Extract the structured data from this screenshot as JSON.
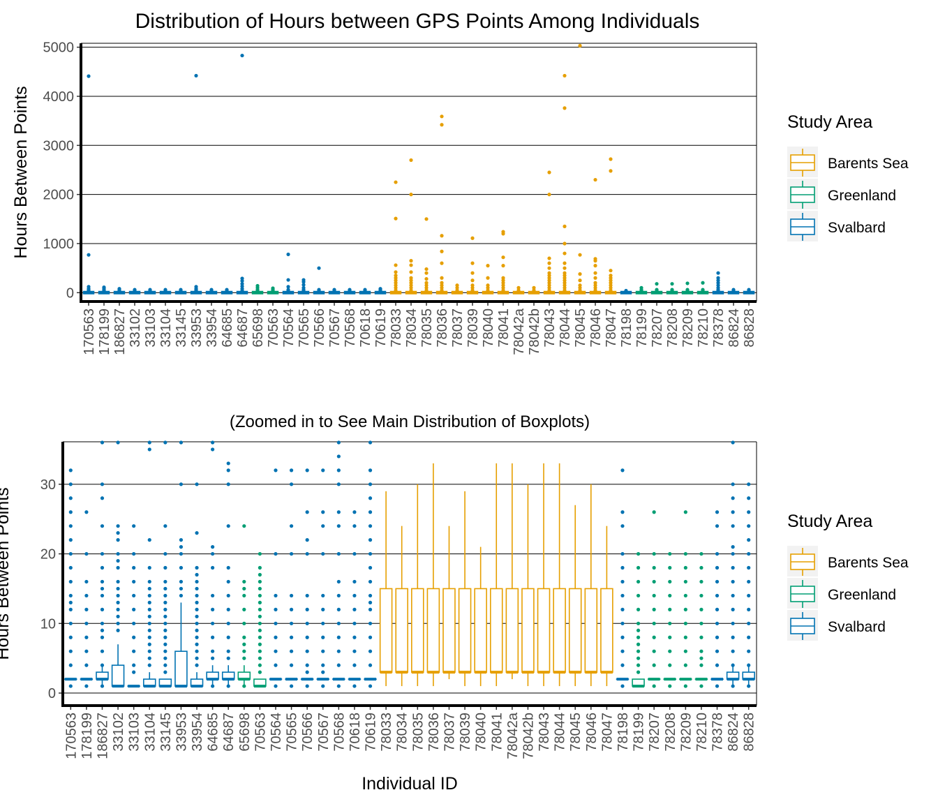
{
  "colors": {
    "Barents Sea": "#E69F00",
    "Greenland": "#009E73",
    "Svalbard": "#0072B2"
  },
  "chart_data": [
    {
      "type": "box",
      "title": "Distribution of Hours between GPS Points Among Individuals",
      "xlabel": "",
      "ylabel": "Hours Between Points",
      "ylim": [
        -180,
        5080
      ],
      "yticks": [
        0,
        1000,
        2000,
        3000,
        4000,
        5000
      ],
      "grid": "horizontal major",
      "legend": {
        "title": "Study Area",
        "position": "right",
        "entries": [
          "Barents Sea",
          "Greenland",
          "Svalbard"
        ]
      },
      "categories": [
        "170563",
        "178199",
        "186827",
        "33102",
        "33103",
        "33104",
        "33145",
        "33953",
        "33954",
        "64685",
        "64687",
        "65698",
        "70563",
        "70564",
        "70565",
        "70566",
        "70567",
        "70568",
        "70618",
        "70619",
        "78033",
        "78034",
        "78035",
        "78036",
        "78037",
        "78039",
        "78040",
        "78041",
        "78042a",
        "78042b",
        "78043",
        "78044",
        "78045",
        "78046",
        "78047",
        "78198",
        "78199",
        "78207",
        "78208",
        "78209",
        "78210",
        "78378",
        "86824",
        "86828"
      ],
      "groups": [
        "Svalbard",
        "Svalbard",
        "Svalbard",
        "Svalbard",
        "Svalbard",
        "Svalbard",
        "Svalbard",
        "Svalbard",
        "Svalbard",
        "Svalbard",
        "Svalbard",
        "Greenland",
        "Greenland",
        "Svalbard",
        "Svalbard",
        "Svalbard",
        "Svalbard",
        "Svalbard",
        "Svalbard",
        "Svalbard",
        "Barents Sea",
        "Barents Sea",
        "Barents Sea",
        "Barents Sea",
        "Barents Sea",
        "Barents Sea",
        "Barents Sea",
        "Barents Sea",
        "Barents Sea",
        "Barents Sea",
        "Barents Sea",
        "Barents Sea",
        "Barents Sea",
        "Barents Sea",
        "Barents Sea",
        "Svalbard",
        "Greenland",
        "Greenland",
        "Greenland",
        "Greenland",
        "Greenland",
        "Svalbard",
        "Svalbard",
        "Svalbard"
      ],
      "outliers": [
        [
          20,
          40,
          60,
          80,
          120,
          770,
          4410
        ],
        [
          20,
          40,
          60,
          90,
          110
        ],
        [
          20,
          40,
          60,
          80
        ],
        [
          20,
          40,
          60
        ],
        [
          20,
          40,
          60
        ],
        [
          20,
          40,
          60
        ],
        [
          20,
          40,
          60
        ],
        [
          20,
          40,
          60,
          80,
          120,
          4420
        ],
        [
          20,
          40,
          60
        ],
        [
          20,
          40,
          60
        ],
        [
          40,
          80,
          130,
          180,
          240,
          290,
          4830
        ],
        [
          20,
          40,
          60,
          100,
          140
        ],
        [
          20,
          40,
          60,
          90
        ],
        [
          20,
          40,
          60,
          120,
          260,
          780
        ],
        [
          20,
          40,
          60,
          100,
          160,
          220,
          260
        ],
        [
          20,
          40,
          60,
          500
        ],
        [
          20,
          40,
          60
        ],
        [
          20,
          40,
          60
        ],
        [
          20,
          40,
          60
        ],
        [
          20,
          40,
          60,
          80
        ],
        [
          50,
          100,
          150,
          200,
          250,
          300,
          350,
          420,
          560,
          1510,
          2250
        ],
        [
          50,
          100,
          150,
          200,
          250,
          300,
          420,
          560,
          650,
          2000,
          2700
        ],
        [
          50,
          100,
          150,
          200,
          280,
          400,
          480,
          1500
        ],
        [
          50,
          100,
          150,
          200,
          300,
          600,
          840,
          1160,
          3420,
          3590
        ],
        [
          50,
          100,
          150
        ],
        [
          50,
          100,
          150,
          250,
          400,
          600,
          1110
        ],
        [
          50,
          100,
          150,
          300,
          550
        ],
        [
          50,
          100,
          150,
          200,
          250,
          300,
          550,
          720,
          1200,
          1240
        ],
        [
          50,
          100
        ],
        [
          50,
          100
        ],
        [
          50,
          100,
          150,
          200,
          250,
          300,
          350,
          400,
          500,
          600,
          700,
          2000,
          2450
        ],
        [
          50,
          100,
          150,
          200,
          250,
          300,
          350,
          400,
          500,
          600,
          800,
          1000,
          1350,
          3760,
          4420
        ],
        [
          50,
          100,
          150,
          250,
          380,
          770,
          5030
        ],
        [
          50,
          100,
          150,
          200,
          300,
          400,
          550,
          650,
          690,
          2300
        ],
        [
          50,
          100,
          150,
          200,
          250,
          300,
          350,
          450,
          2480,
          2720
        ],
        [
          20,
          40
        ],
        [
          20,
          40,
          60,
          100
        ],
        [
          20,
          40,
          60,
          180
        ],
        [
          20,
          40,
          60,
          180
        ],
        [
          20,
          40,
          60,
          190
        ],
        [
          20,
          40,
          60,
          200
        ],
        [
          20,
          40,
          60,
          100,
          150,
          200,
          250,
          300,
          400
        ],
        [
          20,
          40,
          60
        ],
        [
          20,
          40,
          60
        ]
      ]
    },
    {
      "type": "box",
      "title": "(Zoomed in to See Main Distribution of Boxplots)",
      "xlabel": "Individual ID",
      "ylabel": "Hours Between Points",
      "ylim": [
        -1.8,
        36.1
      ],
      "yticks": [
        0,
        10,
        20,
        30
      ],
      "grid": "horizontal major",
      "legend": {
        "title": "Study Area",
        "position": "right",
        "entries": [
          "Barents Sea",
          "Greenland",
          "Svalbard"
        ]
      },
      "boxes": [
        {
          "q1": 2,
          "median": 2,
          "q3": 2,
          "whisker_low": 2,
          "whisker_high": 2
        },
        {
          "q1": 2,
          "median": 2,
          "q3": 2,
          "whisker_low": 2,
          "whisker_high": 2
        },
        {
          "q1": 2,
          "median": 2,
          "q3": 3,
          "whisker_low": 1,
          "whisker_high": 4
        },
        {
          "q1": 1,
          "median": 1,
          "q3": 4,
          "whisker_low": 1,
          "whisker_high": 7
        },
        {
          "q1": 1,
          "median": 1,
          "q3": 1,
          "whisker_low": 1,
          "whisker_high": 1
        },
        {
          "q1": 1,
          "median": 1,
          "q3": 2,
          "whisker_low": 1,
          "whisker_high": 3
        },
        {
          "q1": 1,
          "median": 1,
          "q3": 2,
          "whisker_low": 1,
          "whisker_high": 2
        },
        {
          "q1": 1,
          "median": 1,
          "q3": 6,
          "whisker_low": 1,
          "whisker_high": 13
        },
        {
          "q1": 1,
          "median": 1,
          "q3": 2,
          "whisker_low": 1,
          "whisker_high": 3
        },
        {
          "q1": 2,
          "median": 2,
          "q3": 3,
          "whisker_low": 1,
          "whisker_high": 4
        },
        {
          "q1": 2,
          "median": 2,
          "q3": 3,
          "whisker_low": 1,
          "whisker_high": 4
        },
        {
          "q1": 2,
          "median": 2,
          "q3": 3,
          "whisker_low": 1,
          "whisker_high": 4
        },
        {
          "q1": 1,
          "median": 1,
          "q3": 2,
          "whisker_low": 1,
          "whisker_high": 2
        },
        {
          "q1": 2,
          "median": 2,
          "q3": 2,
          "whisker_low": 2,
          "whisker_high": 2
        },
        {
          "q1": 2,
          "median": 2,
          "q3": 2,
          "whisker_low": 2,
          "whisker_high": 2
        },
        {
          "q1": 2,
          "median": 2,
          "q3": 2,
          "whisker_low": 2,
          "whisker_high": 2
        },
        {
          "q1": 2,
          "median": 2,
          "q3": 2,
          "whisker_low": 2,
          "whisker_high": 2
        },
        {
          "q1": 2,
          "median": 2,
          "q3": 2,
          "whisker_low": 2,
          "whisker_high": 2
        },
        {
          "q1": 2,
          "median": 2,
          "q3": 2,
          "whisker_low": 2,
          "whisker_high": 2
        },
        {
          "q1": 2,
          "median": 2,
          "q3": 2,
          "whisker_low": 2,
          "whisker_high": 2
        },
        {
          "q1": 3,
          "median": 3,
          "q3": 15,
          "whisker_low": 1,
          "whisker_high": 29
        },
        {
          "q1": 3,
          "median": 3,
          "q3": 15,
          "whisker_low": 1,
          "whisker_high": 24
        },
        {
          "q1": 3,
          "median": 3,
          "q3": 15,
          "whisker_low": 1,
          "whisker_high": 30
        },
        {
          "q1": 3,
          "median": 3,
          "q3": 15,
          "whisker_low": 1,
          "whisker_high": 33
        },
        {
          "q1": 3,
          "median": 3,
          "q3": 15,
          "whisker_low": 2,
          "whisker_high": 24
        },
        {
          "q1": 3,
          "median": 3,
          "q3": 15,
          "whisker_low": 1,
          "whisker_high": 29
        },
        {
          "q1": 3,
          "median": 3,
          "q3": 15,
          "whisker_low": 1,
          "whisker_high": 21
        },
        {
          "q1": 3,
          "median": 3,
          "q3": 15,
          "whisker_low": 1,
          "whisker_high": 33
        },
        {
          "q1": 3,
          "median": 3,
          "q3": 15,
          "whisker_low": 2,
          "whisker_high": 33
        },
        {
          "q1": 3,
          "median": 3,
          "q3": 15,
          "whisker_low": 1,
          "whisker_high": 30
        },
        {
          "q1": 3,
          "median": 3,
          "q3": 15,
          "whisker_low": 1,
          "whisker_high": 33
        },
        {
          "q1": 3,
          "median": 3,
          "q3": 15,
          "whisker_low": 1,
          "whisker_high": 33
        },
        {
          "q1": 3,
          "median": 3,
          "q3": 15,
          "whisker_low": 1,
          "whisker_high": 27
        },
        {
          "q1": 3,
          "median": 3,
          "q3": 15,
          "whisker_low": 1,
          "whisker_high": 30
        },
        {
          "q1": 3,
          "median": 3,
          "q3": 15,
          "whisker_low": 1,
          "whisker_high": 24
        },
        {
          "q1": 2,
          "median": 2,
          "q3": 2,
          "whisker_low": 2,
          "whisker_high": 2
        },
        {
          "q1": 1,
          "median": 1,
          "q3": 2,
          "whisker_low": 1,
          "whisker_high": 2
        },
        {
          "q1": 2,
          "median": 2,
          "q3": 2,
          "whisker_low": 2,
          "whisker_high": 2
        },
        {
          "q1": 2,
          "median": 2,
          "q3": 2,
          "whisker_low": 2,
          "whisker_high": 2
        },
        {
          "q1": 2,
          "median": 2,
          "q3": 2,
          "whisker_low": 2,
          "whisker_high": 2
        },
        {
          "q1": 2,
          "median": 2,
          "q3": 2,
          "whisker_low": 2,
          "whisker_high": 2
        },
        {
          "q1": 2,
          "median": 2,
          "q3": 2,
          "whisker_low": 2,
          "whisker_high": 2
        },
        {
          "q1": 2,
          "median": 2,
          "q3": 3,
          "whisker_low": 1,
          "whisker_high": 4
        },
        {
          "q1": 2,
          "median": 2,
          "q3": 3,
          "whisker_low": 1,
          "whisker_high": 4
        }
      ],
      "outliers": [
        [
          1,
          4,
          6,
          8,
          10,
          12,
          13,
          14,
          16,
          18,
          20,
          22,
          24,
          26,
          28,
          30,
          32
        ],
        [
          1,
          4,
          6,
          8,
          10,
          12,
          14,
          16,
          20,
          26
        ],
        [
          1,
          4,
          6,
          8,
          9,
          10,
          12,
          14,
          15,
          16,
          18,
          20,
          24,
          28,
          30,
          36
        ],
        [
          9,
          10,
          11,
          12,
          13,
          14,
          15,
          16,
          18,
          19,
          20,
          22,
          23,
          24,
          36
        ],
        [
          3,
          4,
          6,
          8,
          10,
          12,
          14,
          16,
          18,
          20,
          24
        ],
        [
          4,
          5,
          6,
          7,
          8,
          9,
          10,
          11,
          12,
          13,
          14,
          15,
          16,
          18,
          22,
          35,
          36
        ],
        [
          3,
          4,
          5,
          6,
          7,
          8,
          9,
          10,
          11,
          12,
          13,
          14,
          15,
          16,
          18,
          20,
          24,
          36
        ],
        [
          14,
          15,
          16,
          18,
          20,
          21,
          22,
          30,
          36
        ],
        [
          4,
          5,
          6,
          7,
          8,
          9,
          10,
          11,
          12,
          13,
          14,
          15,
          16,
          17,
          18,
          23,
          30
        ],
        [
          1,
          5,
          6,
          8,
          10,
          12,
          14,
          18,
          20,
          21,
          35,
          36
        ],
        [
          1,
          5,
          6,
          8,
          10,
          12,
          14,
          16,
          18,
          24,
          30,
          32,
          33
        ],
        [
          1,
          5,
          6,
          7,
          8,
          10,
          12,
          14,
          15,
          16,
          24
        ],
        [
          3,
          4,
          5,
          6,
          7,
          8,
          9,
          10,
          11,
          12,
          13,
          14,
          15,
          16,
          17,
          18,
          20
        ],
        [
          1,
          4,
          6,
          8,
          10,
          12,
          14,
          20,
          32
        ],
        [
          1,
          4,
          6,
          8,
          10,
          12,
          14,
          20,
          24,
          30,
          32
        ],
        [
          1,
          3,
          4,
          6,
          8,
          10,
          12,
          14,
          20,
          22,
          26,
          32
        ],
        [
          1,
          3,
          4,
          6,
          8,
          10,
          12,
          14,
          20,
          24,
          26,
          32
        ],
        [
          1,
          4,
          6,
          8,
          10,
          12,
          14,
          16,
          20,
          24,
          26,
          30,
          32,
          34,
          36
        ],
        [
          1,
          4,
          6,
          8,
          10,
          12,
          14,
          16,
          20,
          24,
          26
        ],
        [
          1,
          4,
          6,
          8,
          10,
          12,
          13,
          14,
          16,
          18,
          20,
          22,
          24,
          26,
          28,
          30,
          32,
          36
        ],
        [],
        [],
        [],
        [],
        [],
        [],
        [],
        [],
        [],
        [],
        [],
        [],
        [],
        [],
        [],
        [
          1,
          4,
          6,
          8,
          10,
          12,
          14,
          16,
          18,
          20,
          24,
          26,
          32
        ],
        [
          3,
          4,
          5,
          6,
          7,
          8,
          9,
          10,
          12,
          14,
          16,
          18,
          20
        ],
        [
          1,
          4,
          6,
          8,
          10,
          12,
          14,
          16,
          18,
          20,
          26
        ],
        [
          1,
          4,
          6,
          8,
          10,
          12,
          14,
          16,
          18,
          20
        ],
        [
          1,
          4,
          6,
          8,
          10,
          12,
          14,
          16,
          18,
          20,
          26
        ],
        [
          1,
          4,
          5,
          6,
          8,
          10,
          12,
          14,
          16,
          18,
          20
        ],
        [
          1,
          4,
          6,
          8,
          10,
          12,
          14,
          16,
          18,
          20,
          24,
          26
        ],
        [
          1,
          4,
          6,
          8,
          10,
          12,
          14,
          16,
          18,
          20,
          21,
          24,
          26,
          28,
          30,
          36
        ],
        [
          1,
          4,
          6,
          8,
          10,
          12,
          14,
          16,
          18,
          20,
          22,
          24,
          26,
          28,
          30
        ]
      ]
    }
  ]
}
